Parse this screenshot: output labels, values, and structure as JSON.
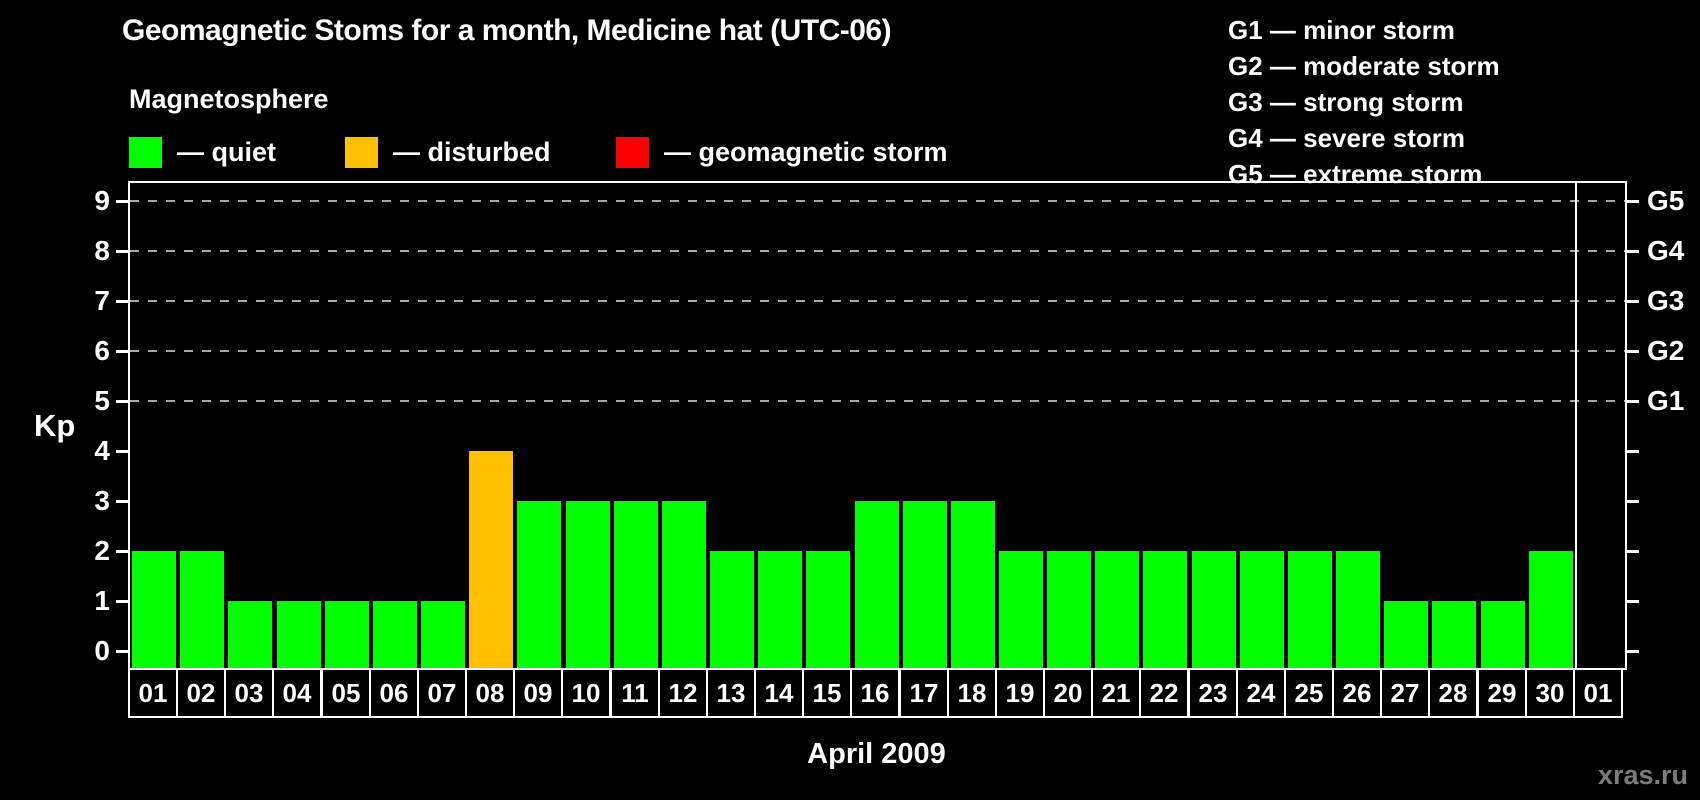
{
  "title": "Geomagnetic Stoms for a month, Medicine hat (UTC-06)",
  "legend": {
    "heading": "Magnetosphere",
    "items": [
      {
        "key": "quiet",
        "label": "— quiet",
        "color": "#00ff00"
      },
      {
        "key": "disturbed",
        "label": "— disturbed",
        "color": "#ffc000"
      },
      {
        "key": "storm",
        "label": "— geomagnetic storm",
        "color": "#ff0000"
      }
    ]
  },
  "storm_scale": {
    "items": [
      "G1 — minor storm",
      "G2 — moderate storm",
      "G3 — strong storm",
      "G4 — severe storm",
      "G5 — extreme storm"
    ]
  },
  "watermark": "xras.ru",
  "chart_data": {
    "type": "bar",
    "title": "Geomagnetic Stoms for a month, Medicine hat (UTC-06)",
    "xlabel": "April 2009",
    "ylabel": "Kp",
    "ylim": [
      0,
      9
    ],
    "y_ticks": [
      0,
      1,
      2,
      3,
      4,
      5,
      6,
      7,
      8,
      9
    ],
    "gridlines_at": [
      5,
      6,
      7,
      8,
      9
    ],
    "grid_style": "dashed",
    "legend_position": "top",
    "status_colors": {
      "quiet": "#00ff00",
      "disturbed": "#ffc000",
      "storm": "#ff0000"
    },
    "right_axis_labels": [
      {
        "kp": 5,
        "label": "G1"
      },
      {
        "kp": 6,
        "label": "G2"
      },
      {
        "kp": 7,
        "label": "G3"
      },
      {
        "kp": 8,
        "label": "G4"
      },
      {
        "kp": 9,
        "label": "G5"
      }
    ],
    "categories": [
      "01",
      "02",
      "03",
      "04",
      "05",
      "06",
      "07",
      "08",
      "09",
      "10",
      "11",
      "12",
      "13",
      "14",
      "15",
      "16",
      "17",
      "18",
      "19",
      "20",
      "21",
      "22",
      "23",
      "24",
      "25",
      "26",
      "27",
      "28",
      "29",
      "30",
      "01"
    ],
    "bars": [
      {
        "day": "01",
        "kp": 2,
        "status": "quiet"
      },
      {
        "day": "02",
        "kp": 2,
        "status": "quiet"
      },
      {
        "day": "03",
        "kp": 1,
        "status": "quiet"
      },
      {
        "day": "04",
        "kp": 1,
        "status": "quiet"
      },
      {
        "day": "05",
        "kp": 1,
        "status": "quiet"
      },
      {
        "day": "06",
        "kp": 1,
        "status": "quiet"
      },
      {
        "day": "07",
        "kp": 1,
        "status": "quiet"
      },
      {
        "day": "08",
        "kp": 4,
        "status": "disturbed"
      },
      {
        "day": "09",
        "kp": 3,
        "status": "quiet"
      },
      {
        "day": "10",
        "kp": 3,
        "status": "quiet"
      },
      {
        "day": "11",
        "kp": 3,
        "status": "quiet"
      },
      {
        "day": "12",
        "kp": 3,
        "status": "quiet"
      },
      {
        "day": "13",
        "kp": 2,
        "status": "quiet"
      },
      {
        "day": "14",
        "kp": 2,
        "status": "quiet"
      },
      {
        "day": "15",
        "kp": 2,
        "status": "quiet"
      },
      {
        "day": "16",
        "kp": 3,
        "status": "quiet"
      },
      {
        "day": "17",
        "kp": 3,
        "status": "quiet"
      },
      {
        "day": "18",
        "kp": 3,
        "status": "quiet"
      },
      {
        "day": "19",
        "kp": 2,
        "status": "quiet"
      },
      {
        "day": "20",
        "kp": 2,
        "status": "quiet"
      },
      {
        "day": "21",
        "kp": 2,
        "status": "quiet"
      },
      {
        "day": "22",
        "kp": 2,
        "status": "quiet"
      },
      {
        "day": "23",
        "kp": 2,
        "status": "quiet"
      },
      {
        "day": "24",
        "kp": 2,
        "status": "quiet"
      },
      {
        "day": "25",
        "kp": 2,
        "status": "quiet"
      },
      {
        "day": "26",
        "kp": 2,
        "status": "quiet"
      },
      {
        "day": "27",
        "kp": 1,
        "status": "quiet"
      },
      {
        "day": "28",
        "kp": 1,
        "status": "quiet"
      },
      {
        "day": "29",
        "kp": 1,
        "status": "quiet"
      },
      {
        "day": "30",
        "kp": 2,
        "status": "quiet"
      },
      {
        "day": "01",
        "kp": null,
        "status": "none"
      }
    ]
  }
}
